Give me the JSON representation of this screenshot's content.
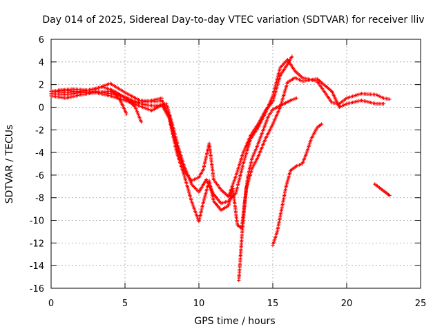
{
  "chart_data": {
    "type": "scatter",
    "title": "Day 014 of 2025, Sidereal Day-to-day VTEC variation (SDTVAR) for receiver lliv",
    "xlabel": "GPS time / hours",
    "ylabel": "SDTVAR / TECUs",
    "xlim": [
      0,
      25
    ],
    "ylim": [
      -16,
      6
    ],
    "xticks": [
      "0",
      "5",
      "10",
      "15",
      "20",
      "25"
    ],
    "yticks": [
      "-16",
      "-14",
      "-12",
      "-10",
      "-8",
      "-6",
      "-4",
      "-2",
      "0",
      "2",
      "4",
      "6"
    ],
    "grid": true,
    "marker": "plus",
    "series_color": "#ff0000",
    "tracks": [
      [
        [
          0,
          1.4
        ],
        [
          1,
          1.3
        ],
        [
          2,
          1.4
        ],
        [
          3,
          1.6
        ],
        [
          4,
          2.1
        ],
        [
          5,
          1.3
        ],
        [
          6,
          0.6
        ],
        [
          7,
          0.5
        ],
        [
          7.5,
          0.6
        ],
        [
          8,
          -0.8
        ],
        [
          8.3,
          -2.5
        ],
        [
          8.7,
          -4.2
        ],
        [
          9,
          -5.6
        ],
        [
          9.5,
          -6.5
        ],
        [
          10,
          -6.2
        ],
        [
          10.3,
          -5.5
        ],
        [
          10.7,
          -3.2
        ],
        [
          11,
          -6.4
        ],
        [
          11.5,
          -7.3
        ],
        [
          12,
          -7.9
        ],
        [
          12.5,
          -6.1
        ],
        [
          13,
          -4
        ],
        [
          13.5,
          -2.5
        ],
        [
          14,
          -1.5
        ],
        [
          14.5,
          -0.3
        ],
        [
          15,
          0.5
        ],
        [
          15.5,
          2.8
        ],
        [
          16,
          3.8
        ],
        [
          16.3,
          4.5
        ]
      ],
      [
        [
          0,
          1.2
        ],
        [
          1,
          1.1
        ],
        [
          2,
          1.3
        ],
        [
          3,
          1.3
        ],
        [
          4,
          1.4
        ],
        [
          5,
          0.9
        ],
        [
          6,
          0.3
        ],
        [
          7,
          0.1
        ],
        [
          7.8,
          0.3
        ],
        [
          8.2,
          -1.5
        ],
        [
          8.6,
          -3.5
        ],
        [
          9,
          -5.2
        ],
        [
          9.5,
          -6.8
        ],
        [
          10,
          -7.5
        ],
        [
          10.5,
          -6.4
        ],
        [
          11,
          -7.7
        ],
        [
          11.5,
          -8.5
        ],
        [
          12,
          -8.3
        ],
        [
          12.5,
          -7.6
        ],
        [
          13,
          -5
        ],
        [
          13.5,
          -2.8
        ],
        [
          14,
          -1.8
        ],
        [
          14.5,
          -0.5
        ],
        [
          15,
          1
        ],
        [
          15.5,
          3.5
        ],
        [
          16,
          4.2
        ],
        [
          16.5,
          3.2
        ],
        [
          17,
          2.6
        ],
        [
          18,
          2.3
        ],
        [
          19,
          0.4
        ],
        [
          19.5,
          0.3
        ],
        [
          20,
          0.8
        ],
        [
          21,
          1.2
        ],
        [
          22,
          1.1
        ],
        [
          22.5,
          0.8
        ],
        [
          22.9,
          0.7
        ]
      ],
      [
        [
          0,
          1.0
        ],
        [
          1,
          0.8
        ],
        [
          2,
          1.1
        ],
        [
          3,
          1.3
        ],
        [
          4,
          1.0
        ],
        [
          5,
          0.6
        ],
        [
          6,
          0.1
        ],
        [
          6.8,
          -0.3
        ],
        [
          7.5,
          0.2
        ],
        [
          8,
          -1
        ],
        [
          8.5,
          -4
        ],
        [
          9,
          -6
        ],
        [
          9.5,
          -8.3
        ],
        [
          10,
          -10.1
        ],
        [
          10.3,
          -8.4
        ],
        [
          10.7,
          -6.5
        ],
        [
          11,
          -8.3
        ],
        [
          11.5,
          -9.1
        ],
        [
          12,
          -8.7
        ],
        [
          12.3,
          -7.2
        ],
        [
          12.6,
          -10.4
        ],
        [
          12.9,
          -10.7
        ],
        [
          13.2,
          -7.2
        ],
        [
          13.6,
          -5.4
        ],
        [
          14,
          -4.4
        ],
        [
          14.5,
          -2.8
        ],
        [
          15,
          -1.5
        ],
        [
          15.5,
          0
        ],
        [
          16,
          2.2
        ],
        [
          16.5,
          2.6
        ],
        [
          17,
          2.3
        ],
        [
          18,
          2.5
        ],
        [
          19,
          1.4
        ],
        [
          19.5,
          0
        ],
        [
          20,
          0.3
        ],
        [
          21,
          0.6
        ],
        [
          22,
          0.3
        ],
        [
          22.5,
          0.3
        ]
      ],
      [
        [
          0,
          1.4
        ],
        [
          1,
          1.5
        ],
        [
          2,
          1.3
        ],
        [
          3,
          1.4
        ],
        [
          4,
          1.2
        ],
        [
          5,
          0.9
        ],
        [
          5.7,
          0
        ],
        [
          6.1,
          -1.3
        ]
      ],
      [
        [
          4,
          1.6
        ],
        [
          4.6,
          0.8
        ],
        [
          4.9,
          0
        ],
        [
          5.1,
          -0.6
        ]
      ],
      [
        [
          0.5,
          1.5
        ],
        [
          1.5,
          1.6
        ],
        [
          2.5,
          1.5
        ],
        [
          3.5,
          1.8
        ],
        [
          4.3,
          1.4
        ],
        [
          5.5,
          0.4
        ],
        [
          6.5,
          0.5
        ],
        [
          7.5,
          0.8
        ]
      ],
      [
        [
          12.7,
          -15.3
        ],
        [
          12.8,
          -13.5
        ],
        [
          12.9,
          -11.5
        ],
        [
          13,
          -10
        ],
        [
          13.1,
          -8.5
        ],
        [
          13.3,
          -6.2
        ],
        [
          13.6,
          -4.5
        ],
        [
          13.9,
          -3.6
        ],
        [
          14.3,
          -2.2
        ],
        [
          14.7,
          -0.8
        ],
        [
          15,
          -0.2
        ],
        [
          15.6,
          0.2
        ],
        [
          16.2,
          0.6
        ],
        [
          16.6,
          0.8
        ]
      ],
      [
        [
          15,
          -12.2
        ],
        [
          15.3,
          -11
        ],
        [
          15.6,
          -9
        ],
        [
          15.9,
          -7
        ],
        [
          16.2,
          -5.6
        ],
        [
          16.6,
          -5.2
        ],
        [
          17,
          -5
        ],
        [
          17.3,
          -4
        ],
        [
          17.6,
          -2.8
        ],
        [
          18,
          -1.8
        ],
        [
          18.3,
          -1.5
        ]
      ],
      [
        [
          21.9,
          -6.8
        ],
        [
          22.3,
          -7.2
        ],
        [
          22.6,
          -7.5
        ],
        [
          22.9,
          -7.8
        ]
      ]
    ]
  }
}
